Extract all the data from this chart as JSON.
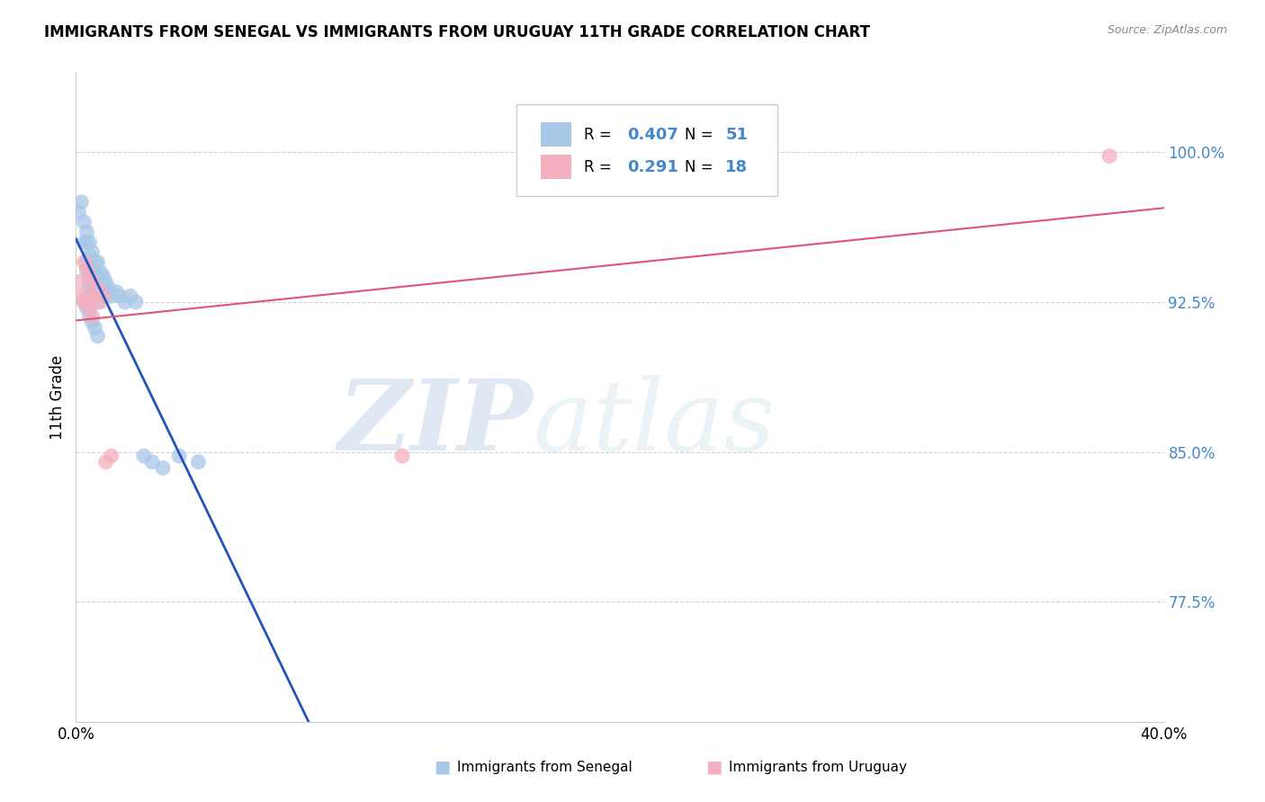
{
  "title": "IMMIGRANTS FROM SENEGAL VS IMMIGRANTS FROM URUGUAY 11TH GRADE CORRELATION CHART",
  "source": "Source: ZipAtlas.com",
  "ylabel": "11th Grade",
  "yticks": [
    "100.0%",
    "92.5%",
    "85.0%",
    "77.5%"
  ],
  "ytick_vals": [
    1.0,
    0.925,
    0.85,
    0.775
  ],
  "xlim": [
    0.0,
    0.4
  ],
  "ylim": [
    0.715,
    1.04
  ],
  "legend_r1": "0.407",
  "legend_n1": "51",
  "legend_r2": "0.291",
  "legend_n2": "18",
  "color_senegal": "#a8c8e8",
  "color_uruguay": "#f4b0c0",
  "color_senegal_line": "#2255bb",
  "color_uruguay_line": "#dd5577",
  "color_ytick": "#4488cc",
  "watermark_zip": "ZIP",
  "watermark_atlas": "atlas",
  "senegal_x": [
    0.001,
    0.002,
    0.003,
    0.003,
    0.004,
    0.004,
    0.004,
    0.004,
    0.005,
    0.005,
    0.005,
    0.005,
    0.005,
    0.005,
    0.005,
    0.005,
    0.006,
    0.006,
    0.006,
    0.007,
    0.007,
    0.007,
    0.008,
    0.008,
    0.008,
    0.008,
    0.009,
    0.009,
    0.01,
    0.01,
    0.01,
    0.011,
    0.011,
    0.012,
    0.013,
    0.015,
    0.016,
    0.018,
    0.02,
    0.022,
    0.003,
    0.004,
    0.005,
    0.006,
    0.007,
    0.008,
    0.025,
    0.028,
    0.032,
    0.038,
    0.045
  ],
  "senegal_y": [
    0.97,
    0.975,
    0.965,
    0.955,
    0.96,
    0.955,
    0.945,
    0.94,
    0.955,
    0.948,
    0.942,
    0.938,
    0.935,
    0.932,
    0.928,
    0.925,
    0.95,
    0.942,
    0.935,
    0.945,
    0.938,
    0.932,
    0.945,
    0.938,
    0.932,
    0.925,
    0.94,
    0.935,
    0.938,
    0.932,
    0.928,
    0.935,
    0.928,
    0.932,
    0.928,
    0.93,
    0.928,
    0.925,
    0.928,
    0.925,
    0.925,
    0.922,
    0.918,
    0.915,
    0.912,
    0.908,
    0.848,
    0.845,
    0.842,
    0.848,
    0.845
  ],
  "uruguay_x": [
    0.001,
    0.002,
    0.003,
    0.003,
    0.004,
    0.004,
    0.005,
    0.005,
    0.006,
    0.006,
    0.007,
    0.008,
    0.009,
    0.01,
    0.011,
    0.013,
    0.12,
    0.38
  ],
  "uruguay_y": [
    0.935,
    0.928,
    0.945,
    0.925,
    0.942,
    0.928,
    0.938,
    0.922,
    0.935,
    0.918,
    0.928,
    0.932,
    0.925,
    0.928,
    0.845,
    0.848,
    0.848,
    0.998
  ]
}
